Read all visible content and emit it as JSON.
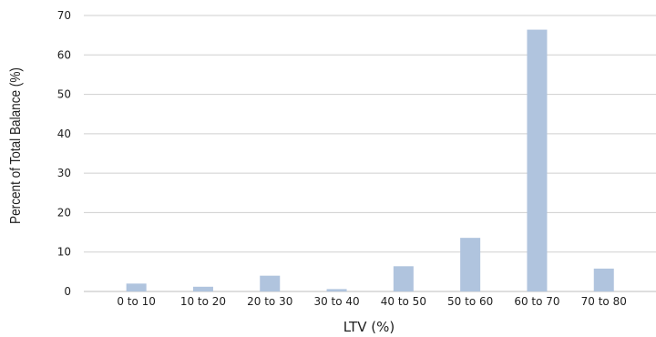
{
  "chart_data": {
    "type": "bar",
    "categories": [
      "0 to 10",
      "10 to 20",
      "20 to 30",
      "30 to 40",
      "40 to 50",
      "50 to 60",
      "60 to 70",
      "70 to 80"
    ],
    "values": [
      2.0,
      1.2,
      4.0,
      0.6,
      6.4,
      13.6,
      66.4,
      5.8
    ],
    "xlabel": "LTV (%)",
    "ylabel": "Percent of Total Balance (%)",
    "ylim": [
      0,
      70
    ],
    "yticks": [
      0,
      10,
      20,
      30,
      40,
      50,
      60,
      70
    ],
    "grid": true,
    "bar_color": "#b0c4de"
  }
}
